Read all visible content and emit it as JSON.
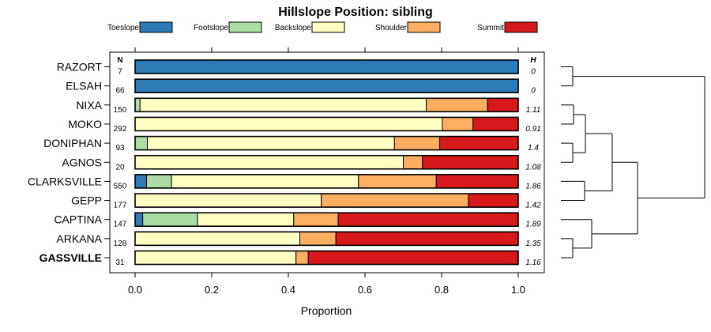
{
  "chart_data": {
    "type": "bar",
    "orientation": "horizontal",
    "stacked": true,
    "title": "Hillslope Position: sibling",
    "xlabel": "Proportion",
    "ylabel": "",
    "xlim": [
      0,
      1
    ],
    "xticks": [
      "0.0",
      "0.2",
      "0.4",
      "0.6",
      "0.8",
      "1.0"
    ],
    "xtick_values": [
      0,
      0.2,
      0.4,
      0.6,
      0.8,
      1.0
    ],
    "legend_position": "top",
    "n_header": "N",
    "h_header": "H",
    "highlight_category": "GASSVILLE",
    "grid": false,
    "categories": [
      "RAZORT",
      "ELSAH",
      "NIXA",
      "MOKO",
      "DONIPHAN",
      "AGNOS",
      "CLARKSVILLE",
      "GEPP",
      "CAPTINA",
      "ARKANA",
      "GASSVILLE"
    ],
    "n": [
      "7",
      "66",
      "150",
      "292",
      "93",
      "20",
      "550",
      "177",
      "147",
      "128",
      "31"
    ],
    "h": [
      "0",
      "0",
      "1.11",
      "0.91",
      "1.4",
      "1.08",
      "1.86",
      "1.42",
      "1.89",
      "1.35",
      "1.16"
    ],
    "series": [
      {
        "name": "Toeslope",
        "color": "#2c7bb6",
        "values": [
          1.0,
          1.0,
          0.0,
          0.0,
          0.0,
          0.0,
          0.03,
          0.0,
          0.02,
          0.0,
          0.0
        ]
      },
      {
        "name": "Footslope",
        "color": "#abdda4",
        "values": [
          0.0,
          0.0,
          0.013,
          0.0,
          0.032,
          0.0,
          0.065,
          0.0,
          0.143,
          0.0,
          0.0
        ]
      },
      {
        "name": "Backslope",
        "color": "#ffffbf",
        "values": [
          0.0,
          0.0,
          0.747,
          0.802,
          0.645,
          0.7,
          0.488,
          0.486,
          0.251,
          0.43,
          0.42
        ]
      },
      {
        "name": "Shoulder",
        "color": "#fdae61",
        "values": [
          0.0,
          0.0,
          0.16,
          0.08,
          0.118,
          0.05,
          0.203,
          0.384,
          0.116,
          0.094,
          0.032
        ]
      },
      {
        "name": "Summit",
        "color": "#d7191c",
        "values": [
          0.0,
          0.0,
          0.08,
          0.118,
          0.205,
          0.25,
          0.214,
          0.13,
          0.47,
          0.476,
          0.548
        ]
      }
    ],
    "dendrogram": {
      "description": "clusters of rows by similarity",
      "merges": [
        {
          "left": "RAZORT",
          "right": "ELSAH",
          "height": 0.1
        },
        {
          "left": "NIXA",
          "right": "MOKO",
          "height": 0.12
        },
        {
          "left": "DONIPHAN",
          "right": "AGNOS",
          "height": 0.1
        },
        {
          "left": "CLARKSVILLE",
          "right": "GEPP",
          "height": 0.16
        },
        {
          "left": "ARKANA",
          "right": "GASSVILLE",
          "height": 0.1
        }
      ]
    }
  }
}
